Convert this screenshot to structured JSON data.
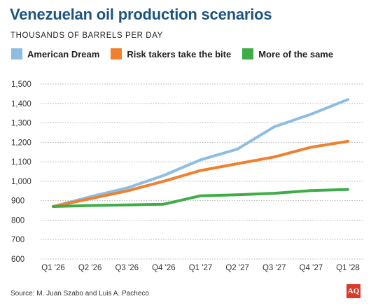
{
  "title": "Venezuelan oil production scenarios",
  "subtitle": "THOUSANDS OF BARRELS PER DAY",
  "source": "Source: M. Juan Szabo and Luis A. Pacheco",
  "logo_text": "AQ",
  "chart_data": {
    "type": "line",
    "title": "Venezuelan oil production scenarios",
    "ylabel": "THOUSANDS OF BARRELS PER DAY",
    "categories": [
      "Q1 '26",
      "Q2 '26",
      "Q3 '26",
      "Q4 '26",
      "Q1 '27",
      "Q2 '27",
      "Q3 '27",
      "Q4 '27",
      "Q1 '28"
    ],
    "ylim": [
      600,
      1500
    ],
    "yticks": [
      "600",
      "700",
      "800",
      "900",
      "1,000",
      "1,100",
      "1,200",
      "1,300",
      "1,400",
      "1,500"
    ],
    "ytick_values": [
      600,
      700,
      800,
      900,
      1000,
      1100,
      1200,
      1300,
      1400,
      1500
    ],
    "grid": true,
    "legend_position": "top",
    "series": [
      {
        "name": "American Dream",
        "color": "#8dbde3",
        "values": [
          870,
          920,
          965,
          1030,
          1110,
          1165,
          1280,
          1345,
          1420
        ]
      },
      {
        "name": "Risk takers take the bite",
        "color": "#f07f2e",
        "values": [
          870,
          910,
          950,
          1000,
          1055,
          1090,
          1125,
          1175,
          1205
        ]
      },
      {
        "name": "More of the same",
        "color": "#3ead47",
        "values": [
          870,
          875,
          878,
          882,
          925,
          930,
          938,
          952,
          958
        ]
      }
    ]
  }
}
